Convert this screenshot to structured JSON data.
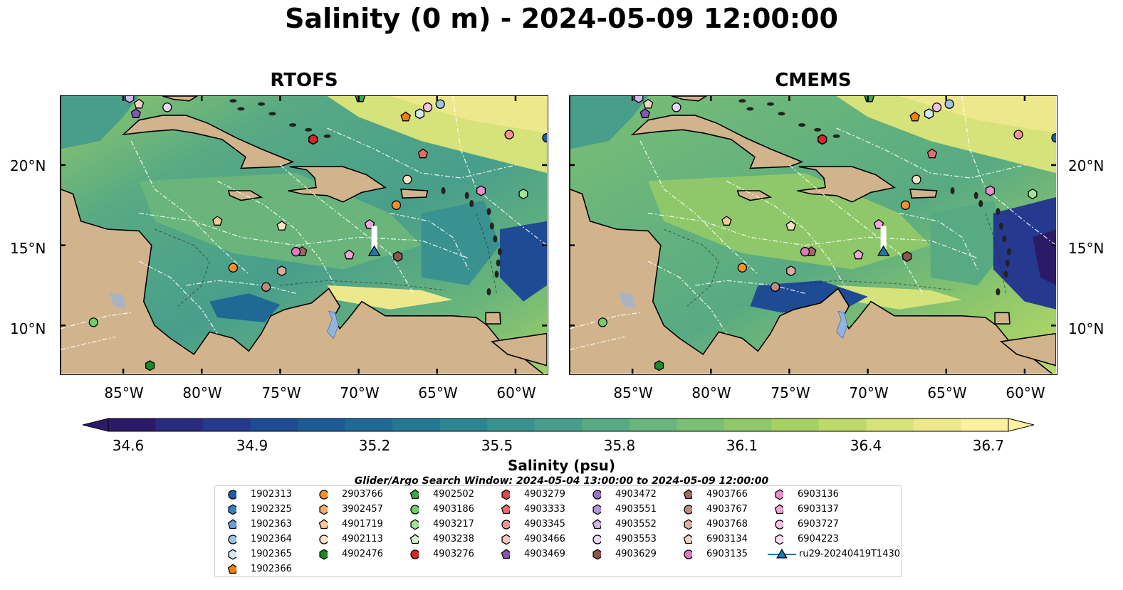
{
  "title": "Salinity (0 m) - 2024-05-09 12:00:00",
  "panels": [
    {
      "title": "RTOFS"
    },
    {
      "title": "CMEMS"
    }
  ],
  "lat_labels": [
    "20°N",
    "15°N",
    "10°N"
  ],
  "lon_labels": [
    "85°W",
    "80°W",
    "75°W",
    "70°W",
    "65°W",
    "60°W"
  ],
  "colorbar": {
    "label": "Salinity (psu)",
    "ticks": [
      "34.6",
      "34.9",
      "35.2",
      "35.5",
      "35.8",
      "36.1",
      "36.4",
      "36.7"
    ],
    "range": [
      34.6,
      36.7
    ],
    "colors": [
      "#2b1a66",
      "#2a2a7f",
      "#253a8f",
      "#1f4b95",
      "#1d5b95",
      "#1f6a94",
      "#257893",
      "#2e8592",
      "#3a9290",
      "#489e8b",
      "#58aa83",
      "#69b57b",
      "#7bbf72",
      "#8fc86a",
      "#a4d064",
      "#bcd96a",
      "#d6e27a",
      "#eee88d",
      "#fdf0a0"
    ]
  },
  "map_colors": {
    "land": "#d2b48c",
    "low_salinity": "#2b1a66",
    "mid": "#58aa83",
    "high": "#fdf0a0",
    "lake": "#94b4e0"
  },
  "search_window": "Glider/Argo Search Window: 2024-05-04 13:00:00 to 2024-05-09 12:00:00",
  "legend": [
    {
      "id": "1902313",
      "marker": "circle",
      "color": "#1f5fa8"
    },
    {
      "id": "1902325",
      "marker": "hexagon",
      "color": "#3b7fc4"
    },
    {
      "id": "1902363",
      "marker": "pentagon",
      "color": "#6aa0d8"
    },
    {
      "id": "1902364",
      "marker": "circle",
      "color": "#9cc3ea"
    },
    {
      "id": "1902365",
      "marker": "hexagon",
      "color": "#d5e6f7"
    },
    {
      "id": "1902366",
      "marker": "pentagon",
      "color": "#f07f0e"
    },
    {
      "id": "2903766",
      "marker": "circle",
      "color": "#f5902b"
    },
    {
      "id": "3902457",
      "marker": "hexagon",
      "color": "#f7ad66"
    },
    {
      "id": "4901719",
      "marker": "pentagon",
      "color": "#f8c996"
    },
    {
      "id": "4902113",
      "marker": "circle",
      "color": "#fde3c3"
    },
    {
      "id": "4902476",
      "marker": "hexagon",
      "color": "#1a8a2a"
    },
    {
      "id": "4902502",
      "marker": "pentagon",
      "color": "#3aa845"
    },
    {
      "id": "4903186",
      "marker": "circle",
      "color": "#6fcf6a"
    },
    {
      "id": "4903217",
      "marker": "hexagon",
      "color": "#a2e29a"
    },
    {
      "id": "4903238",
      "marker": "pentagon",
      "color": "#d5f3cd"
    },
    {
      "id": "4903276",
      "marker": "circle",
      "color": "#d62728"
    },
    {
      "id": "4903279",
      "marker": "hexagon",
      "color": "#e0474a"
    },
    {
      "id": "4903333",
      "marker": "pentagon",
      "color": "#ea6b6c"
    },
    {
      "id": "4903345",
      "marker": "circle",
      "color": "#f39594"
    },
    {
      "id": "4903466",
      "marker": "hexagon",
      "color": "#f8c3c2"
    },
    {
      "id": "4903469",
      "marker": "pentagon",
      "color": "#8256b5"
    },
    {
      "id": "4903472",
      "marker": "circle",
      "color": "#9c74c8"
    },
    {
      "id": "4903551",
      "marker": "hexagon",
      "color": "#b595d8"
    },
    {
      "id": "4903552",
      "marker": "pentagon",
      "color": "#cfb7e7"
    },
    {
      "id": "4903553",
      "marker": "circle",
      "color": "#e8daf5"
    },
    {
      "id": "4903629",
      "marker": "hexagon",
      "color": "#8c564b"
    },
    {
      "id": "4903766",
      "marker": "pentagon",
      "color": "#9e6b5f"
    },
    {
      "id": "4903767",
      "marker": "circle",
      "color": "#bb8b7f"
    },
    {
      "id": "4903768",
      "marker": "hexagon",
      "color": "#d8aea2"
    },
    {
      "id": "6903134",
      "marker": "pentagon",
      "color": "#f0d2c6"
    },
    {
      "id": "6903135",
      "marker": "circle",
      "color": "#e377c2"
    },
    {
      "id": "6903136",
      "marker": "hexagon",
      "color": "#e88fcc"
    },
    {
      "id": "6903137",
      "marker": "pentagon",
      "color": "#eda6d6"
    },
    {
      "id": "6903727",
      "marker": "circle",
      "color": "#f3c1e2"
    },
    {
      "id": "6904223",
      "marker": "hexagon",
      "color": "#f8dcee"
    },
    {
      "id": "ru29-20240419T1430",
      "marker": "triangle-line",
      "color": "#1f77b4"
    }
  ],
  "floats": [
    {
      "lon": -84.6,
      "lat": 24.2,
      "marker": "hexagon",
      "color": "#cfb7e7"
    },
    {
      "lon": -84.0,
      "lat": 23.8,
      "marker": "pentagon",
      "color": "#f0d2c6"
    },
    {
      "lon": -84.2,
      "lat": 23.2,
      "marker": "pentagon",
      "color": "#8256b5"
    },
    {
      "lon": -82.2,
      "lat": 23.6,
      "marker": "circle",
      "color": "#e8daf5"
    },
    {
      "lon": -69.9,
      "lat": 24.2,
      "marker": "pentagon",
      "color": "#3aa845"
    },
    {
      "lon": -66.1,
      "lat": 23.2,
      "marker": "hexagon",
      "color": "#d5e6f7"
    },
    {
      "lon": -67.0,
      "lat": 23.0,
      "marker": "pentagon",
      "color": "#f07f0e"
    },
    {
      "lon": -65.6,
      "lat": 23.6,
      "marker": "circle",
      "color": "#f3c1e2"
    },
    {
      "lon": -64.8,
      "lat": 23.8,
      "marker": "circle",
      "color": "#9cc3ea"
    },
    {
      "lon": -72.9,
      "lat": 21.6,
      "marker": "hexagon",
      "color": "#e0474a"
    },
    {
      "lon": -72.9,
      "lat": 21.6,
      "marker": "circle",
      "color": "#d62728"
    },
    {
      "lon": -60.4,
      "lat": 21.9,
      "marker": "circle",
      "color": "#f39594"
    },
    {
      "lon": -58.0,
      "lat": 21.7,
      "marker": "circle",
      "color": "#1f5fa8"
    },
    {
      "lon": -65.9,
      "lat": 20.7,
      "marker": "pentagon",
      "color": "#ea6b6c"
    },
    {
      "lon": -66.9,
      "lat": 19.1,
      "marker": "circle",
      "color": "#fde3c3"
    },
    {
      "lon": -62.2,
      "lat": 18.4,
      "marker": "hexagon",
      "color": "#e88fcc"
    },
    {
      "lon": -59.5,
      "lat": 18.2,
      "marker": "hexagon",
      "color": "#a2e29a"
    },
    {
      "lon": -67.6,
      "lat": 17.5,
      "marker": "circle",
      "color": "#f5902b"
    },
    {
      "lon": -79.0,
      "lat": 16.5,
      "marker": "pentagon",
      "color": "#f8c996"
    },
    {
      "lon": -74.9,
      "lat": 16.2,
      "marker": "pentagon",
      "color": "#fde3c3"
    },
    {
      "lon": -69.3,
      "lat": 16.3,
      "marker": "pentagon",
      "color": "#eda6d6"
    },
    {
      "lon": -73.6,
      "lat": 14.6,
      "marker": "pentagon",
      "color": "#9e6b5f"
    },
    {
      "lon": -74.0,
      "lat": 14.6,
      "marker": "circle",
      "color": "#e377c2"
    },
    {
      "lon": -70.6,
      "lat": 14.4,
      "marker": "pentagon",
      "color": "#eda6d6"
    },
    {
      "lon": -67.5,
      "lat": 14.3,
      "marker": "hexagon",
      "color": "#8c564b"
    },
    {
      "lon": -78.0,
      "lat": 13.6,
      "marker": "circle",
      "color": "#f5902b"
    },
    {
      "lon": -74.9,
      "lat": 13.4,
      "marker": "hexagon",
      "color": "#d8aea2"
    },
    {
      "lon": -75.9,
      "lat": 12.4,
      "marker": "circle",
      "color": "#bb8b7f"
    },
    {
      "lon": -86.9,
      "lat": 10.2,
      "marker": "circle",
      "color": "#6fcf6a"
    },
    {
      "lon": -83.3,
      "lat": 7.5,
      "marker": "hexagon",
      "color": "#1a8a2a"
    }
  ],
  "glider": {
    "lon": -69.0,
    "lat": 14.6,
    "track_lat_end": 16.2,
    "marker": "triangle",
    "color": "#1f77b4"
  },
  "map_extent": {
    "lon": [
      -89,
      -58
    ],
    "lat": [
      7,
      24.3
    ]
  }
}
